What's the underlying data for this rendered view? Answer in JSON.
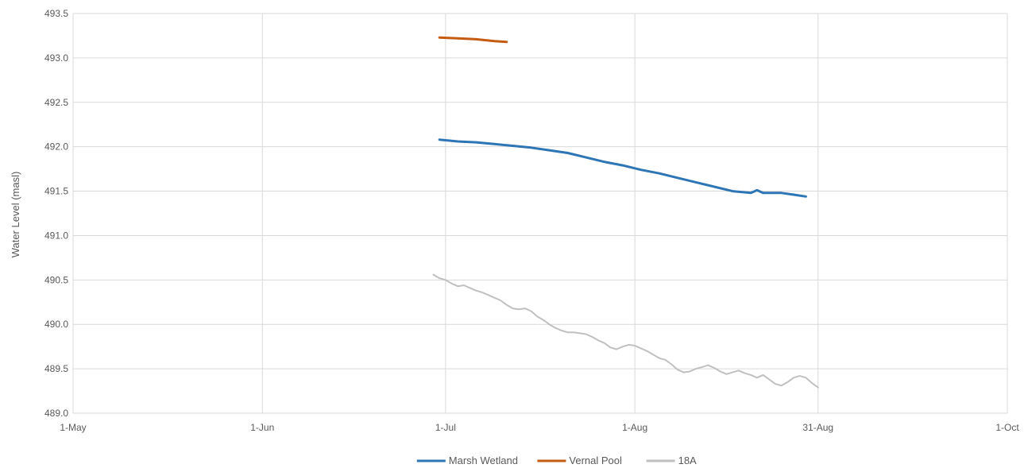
{
  "chart_data": {
    "type": "line",
    "title": "",
    "xlabel": "",
    "ylabel": "Water Level (masl)",
    "ylim": [
      489.0,
      493.5
    ],
    "yticks": [
      "489.0",
      "489.5",
      "490.0",
      "490.5",
      "491.0",
      "491.5",
      "492.0",
      "492.5",
      "493.0",
      "493.5"
    ],
    "xlim": [
      "2023-05-01",
      "2023-10-01"
    ],
    "xticks": [
      {
        "date": "2023-05-01",
        "label": "1-May"
      },
      {
        "date": "2023-06-01",
        "label": "1-Jun"
      },
      {
        "date": "2023-07-01",
        "label": "1-Jul"
      },
      {
        "date": "2023-08-01",
        "label": "1-Aug"
      },
      {
        "date": "2023-08-31",
        "label": "31-Aug"
      },
      {
        "date": "2023-10-01",
        "label": "1-Oct"
      }
    ],
    "grid": true,
    "legend_position": "bottom",
    "series": [
      {
        "name": "Marsh Wetland",
        "color": "#2e75b6",
        "points": [
          [
            "2023-06-30",
            492.08
          ],
          [
            "2023-07-03",
            492.06
          ],
          [
            "2023-07-06",
            492.05
          ],
          [
            "2023-07-09",
            492.03
          ],
          [
            "2023-07-12",
            492.01
          ],
          [
            "2023-07-15",
            491.99
          ],
          [
            "2023-07-18",
            491.96
          ],
          [
            "2023-07-21",
            491.93
          ],
          [
            "2023-07-24",
            491.88
          ],
          [
            "2023-07-27",
            491.83
          ],
          [
            "2023-07-30",
            491.79
          ],
          [
            "2023-08-02",
            491.74
          ],
          [
            "2023-08-05",
            491.7
          ],
          [
            "2023-08-08",
            491.65
          ],
          [
            "2023-08-11",
            491.6
          ],
          [
            "2023-08-14",
            491.55
          ],
          [
            "2023-08-17",
            491.5
          ],
          [
            "2023-08-20",
            491.48
          ],
          [
            "2023-08-21",
            491.51
          ],
          [
            "2023-08-22",
            491.48
          ],
          [
            "2023-08-25",
            491.48
          ],
          [
            "2023-08-27",
            491.46
          ],
          [
            "2023-08-29",
            491.44
          ]
        ]
      },
      {
        "name": "Vernal Pool",
        "color": "#c55a11",
        "points": [
          [
            "2023-06-30",
            493.23
          ],
          [
            "2023-07-03",
            493.22
          ],
          [
            "2023-07-06",
            493.21
          ],
          [
            "2023-07-09",
            493.19
          ],
          [
            "2023-07-11",
            493.18
          ]
        ]
      },
      {
        "name": "18A",
        "color": "#c0c0c0",
        "points": [
          [
            "2023-06-29",
            490.56
          ],
          [
            "2023-06-30",
            490.52
          ],
          [
            "2023-07-01",
            490.5
          ],
          [
            "2023-07-02",
            490.46
          ],
          [
            "2023-07-03",
            490.43
          ],
          [
            "2023-07-04",
            490.44
          ],
          [
            "2023-07-05",
            490.41
          ],
          [
            "2023-07-06",
            490.38
          ],
          [
            "2023-07-07",
            490.36
          ],
          [
            "2023-07-08",
            490.33
          ],
          [
            "2023-07-09",
            490.3
          ],
          [
            "2023-07-10",
            490.27
          ],
          [
            "2023-07-11",
            490.22
          ],
          [
            "2023-07-12",
            490.18
          ],
          [
            "2023-07-13",
            490.17
          ],
          [
            "2023-07-14",
            490.18
          ],
          [
            "2023-07-15",
            490.15
          ],
          [
            "2023-07-16",
            490.09
          ],
          [
            "2023-07-17",
            490.05
          ],
          [
            "2023-07-18",
            490.0
          ],
          [
            "2023-07-19",
            489.96
          ],
          [
            "2023-07-20",
            489.93
          ],
          [
            "2023-07-21",
            489.91
          ],
          [
            "2023-07-22",
            489.91
          ],
          [
            "2023-07-23",
            489.9
          ],
          [
            "2023-07-24",
            489.89
          ],
          [
            "2023-07-25",
            489.86
          ],
          [
            "2023-07-26",
            489.82
          ],
          [
            "2023-07-27",
            489.79
          ],
          [
            "2023-07-28",
            489.74
          ],
          [
            "2023-07-29",
            489.72
          ],
          [
            "2023-07-30",
            489.75
          ],
          [
            "2023-07-31",
            489.77
          ],
          [
            "2023-08-01",
            489.76
          ],
          [
            "2023-08-02",
            489.73
          ],
          [
            "2023-08-03",
            489.7
          ],
          [
            "2023-08-04",
            489.66
          ],
          [
            "2023-08-05",
            489.62
          ],
          [
            "2023-08-06",
            489.6
          ],
          [
            "2023-08-07",
            489.55
          ],
          [
            "2023-08-08",
            489.49
          ],
          [
            "2023-08-09",
            489.46
          ],
          [
            "2023-08-10",
            489.47
          ],
          [
            "2023-08-11",
            489.5
          ],
          [
            "2023-08-12",
            489.52
          ],
          [
            "2023-08-13",
            489.54
          ],
          [
            "2023-08-14",
            489.51
          ],
          [
            "2023-08-15",
            489.47
          ],
          [
            "2023-08-16",
            489.44
          ],
          [
            "2023-08-17",
            489.46
          ],
          [
            "2023-08-18",
            489.48
          ],
          [
            "2023-08-19",
            489.45
          ],
          [
            "2023-08-20",
            489.43
          ],
          [
            "2023-08-21",
            489.4
          ],
          [
            "2023-08-22",
            489.43
          ],
          [
            "2023-08-23",
            489.38
          ],
          [
            "2023-08-24",
            489.33
          ],
          [
            "2023-08-25",
            489.31
          ],
          [
            "2023-08-26",
            489.35
          ],
          [
            "2023-08-27",
            489.4
          ],
          [
            "2023-08-28",
            489.42
          ],
          [
            "2023-08-29",
            489.4
          ],
          [
            "2023-08-30",
            489.34
          ],
          [
            "2023-08-31",
            489.29
          ]
        ]
      }
    ]
  }
}
